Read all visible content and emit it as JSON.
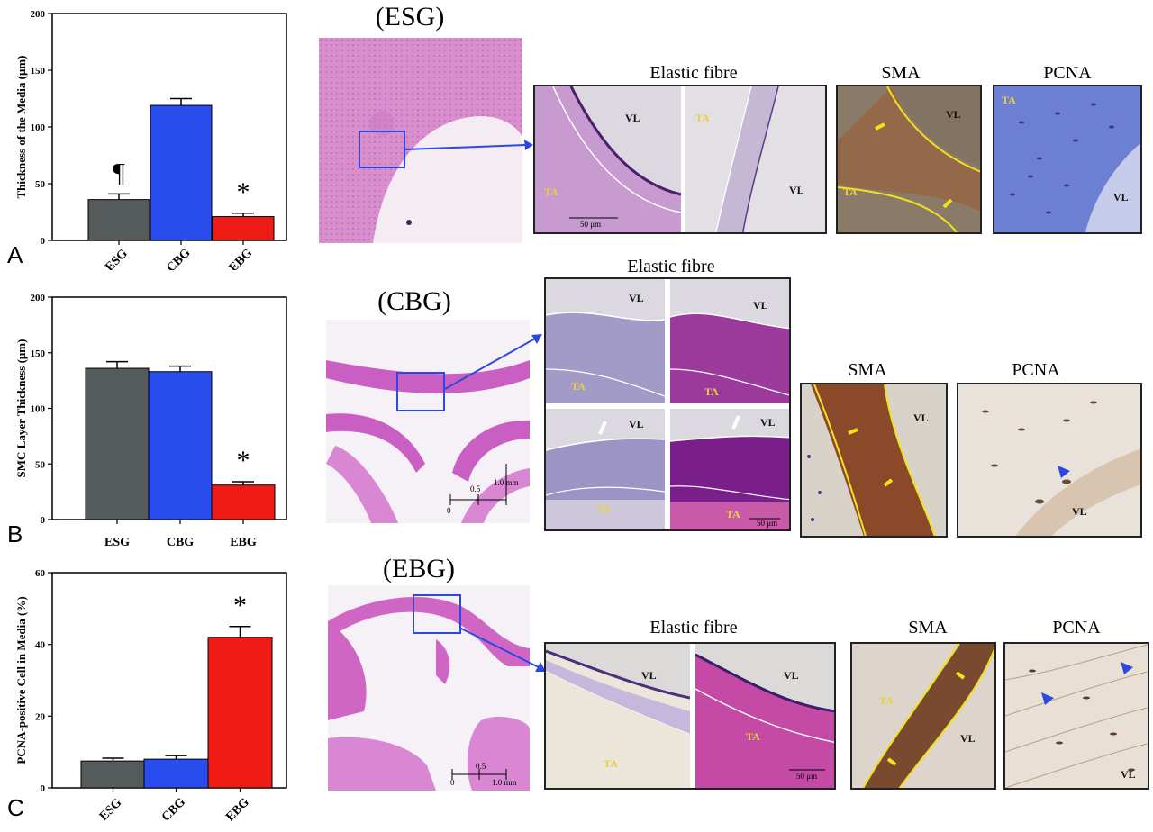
{
  "panels": {
    "A": "A",
    "B": "B",
    "C": "C"
  },
  "groups": {
    "esg": "(ESG)",
    "cbg": "(CBG)",
    "ebg": "(EBG)"
  },
  "labels": {
    "elastic": "Elastic fibre",
    "sma": "SMA",
    "pcna": "PCNA",
    "vl": "VL",
    "ta": "TA",
    "scale50": "50 μm",
    "scale_mm": "1.0 mm",
    "scale_half": "0.5",
    "scale_zero": "0"
  },
  "colors": {
    "esg": "#555a5a",
    "cbg": "#2a4df0",
    "ebg": "#ee1c14",
    "box": "#2d48e0",
    "outline": "#f1e21b"
  },
  "chart_data": [
    {
      "type": "bar",
      "panel": "A",
      "ylabel": "Thickness of the Media (μm)",
      "categories": [
        "ESG",
        "CBG",
        "EBG"
      ],
      "values": [
        36,
        119,
        21
      ],
      "errors": [
        5,
        6,
        3
      ],
      "annotations": [
        "¶",
        "",
        "*"
      ],
      "ylim": [
        0,
        200
      ],
      "yticks": [
        0,
        50,
        100,
        150,
        200
      ]
    },
    {
      "type": "bar",
      "panel": "B",
      "ylabel": "SMC Layer Thickness (μm)",
      "categories": [
        "ESG",
        "CBG",
        "EBG"
      ],
      "values": [
        136,
        133,
        31
      ],
      "errors": [
        6,
        5,
        3
      ],
      "annotations": [
        "",
        "",
        "*"
      ],
      "ylim": [
        0,
        200
      ],
      "yticks": [
        0,
        50,
        100,
        150,
        200
      ]
    },
    {
      "type": "bar",
      "panel": "C",
      "ylabel": "PCNA-positive Cell in Media (%)",
      "categories": [
        "ESG",
        "CBG",
        "EBG"
      ],
      "values": [
        7.5,
        8,
        42
      ],
      "errors": [
        0.8,
        1,
        3
      ],
      "annotations": [
        "",
        "",
        "*"
      ],
      "ylim": [
        0,
        60
      ],
      "yticks": [
        0,
        20,
        40,
        60
      ]
    }
  ]
}
